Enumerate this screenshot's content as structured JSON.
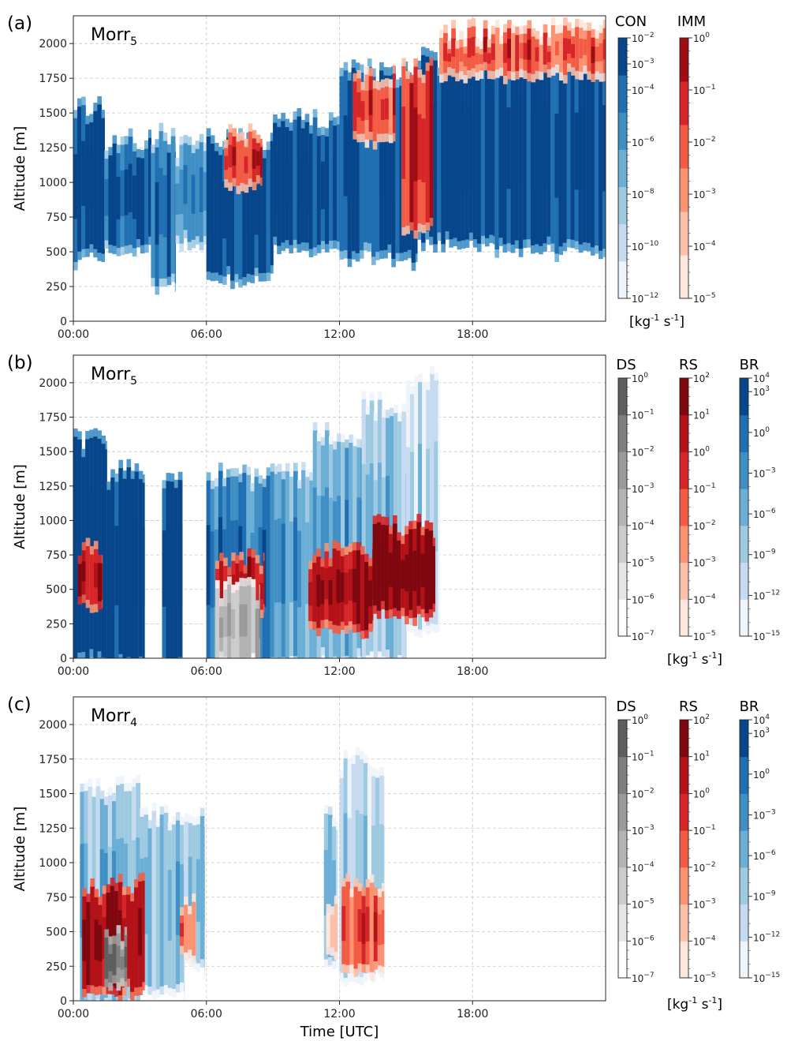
{
  "chart_data": [
    {
      "panel_letter": "(a)",
      "model": {
        "base": "Morr",
        "sub": "5"
      },
      "type": "heatmap",
      "xlabel": "",
      "ylabel": "Altitude [m]",
      "x_tick_labels": [
        "00:00",
        "06:00",
        "12:00",
        "18:00"
      ],
      "x_tick_hours": [
        0,
        6,
        12,
        18
      ],
      "xlim_hours": [
        0,
        24
      ],
      "y_ticks": [
        0,
        250,
        500,
        750,
        1000,
        1250,
        1500,
        1750,
        2000
      ],
      "ylim": [
        0,
        2200
      ],
      "grid": true,
      "unit_label": {
        "base": "[kg",
        "sup1": "-1",
        "mid": " s",
        "sup2": "-1",
        "end": "]"
      },
      "colorbars": [
        {
          "title": "CON",
          "colormap": "Blues",
          "exponents": [
            -2,
            -3,
            -4,
            -6,
            -8,
            -10,
            -12
          ],
          "log_range": [
            -12,
            -2
          ],
          "colors": [
            "#eef4fb",
            "#c6dbef",
            "#9ecae1",
            "#6baed6",
            "#3f8fc5",
            "#1f6fb2",
            "#08468b"
          ]
        },
        {
          "title": "IMM",
          "colormap": "Reds",
          "exponents": [
            0,
            -1,
            -2,
            -3,
            -4,
            -5
          ],
          "log_range": [
            -5,
            0
          ],
          "colors": [
            "#fde6dc",
            "#fcc0a8",
            "#fc9272",
            "#f25c45",
            "#d6262a",
            "#9d0d14"
          ]
        }
      ],
      "fields": [
        {
          "name": "CON",
          "colormap": "Blues",
          "segments": [
            {
              "t": [
                0.0,
                1.4
              ],
              "z": [
                500,
                1500
              ],
              "level": 6
            },
            {
              "t": [
                1.4,
                3.5
              ],
              "z": [
                550,
                1250
              ],
              "level": 5
            },
            {
              "t": [
                3.5,
                4.6
              ],
              "z": [
                300,
                1300
              ],
              "level": 5
            },
            {
              "t": [
                4.6,
                6.0
              ],
              "z": [
                600,
                1200
              ],
              "level": 4
            },
            {
              "t": [
                6.0,
                9.0
              ],
              "z": [
                350,
                1250
              ],
              "level": 6
            },
            {
              "t": [
                9.0,
                12.0
              ],
              "z": [
                550,
                1400
              ],
              "level": 6
            },
            {
              "t": [
                12.0,
                15.5
              ],
              "z": [
                500,
                1750
              ],
              "level": 6
            },
            {
              "t": [
                15.5,
                19.0
              ],
              "z": [
                600,
                1850
              ],
              "level": 6
            },
            {
              "t": [
                19.0,
                24.0
              ],
              "z": [
                550,
                1900
              ],
              "level": 6
            }
          ]
        },
        {
          "name": "IMM",
          "colormap": "Reds",
          "segments": [
            {
              "t": [
                6.8,
                8.5
              ],
              "z": [
                1000,
                1300
              ],
              "level": 4
            },
            {
              "t": [
                12.6,
                14.5
              ],
              "z": [
                1350,
                1700
              ],
              "level": 3
            },
            {
              "t": [
                14.8,
                16.2
              ],
              "z": [
                700,
                1800
              ],
              "level": 4
            },
            {
              "t": [
                16.5,
                24.0
              ],
              "z": [
                1800,
                2050
              ],
              "level": 3
            }
          ]
        }
      ]
    },
    {
      "panel_letter": "(b)",
      "model": {
        "base": "Morr",
        "sub": "5"
      },
      "type": "heatmap",
      "xlabel": "",
      "ylabel": "Altitude [m]",
      "x_tick_labels": [
        "00:00",
        "06:00",
        "12:00",
        "18:00"
      ],
      "x_tick_hours": [
        0,
        6,
        12,
        18
      ],
      "xlim_hours": [
        0,
        24
      ],
      "y_ticks": [
        0,
        250,
        500,
        750,
        1000,
        1250,
        1500,
        1750,
        2000
      ],
      "ylim": [
        0,
        2200
      ],
      "grid": true,
      "unit_label": {
        "base": "[kg",
        "sup1": "-1",
        "mid": " s",
        "sup2": "-1",
        "end": "]"
      },
      "colorbars": [
        {
          "title": "DS",
          "colormap": "Greys",
          "exponents": [
            0,
            -1,
            -2,
            -3,
            -4,
            -5,
            -6,
            -7
          ],
          "log_range": [
            -7,
            0
          ],
          "colors": [
            "#ffffff",
            "#e6e6e6",
            "#cccccc",
            "#b3b3b3",
            "#9a9a9a",
            "#7f7f7f",
            "#5e5e5e"
          ]
        },
        {
          "title": "RS",
          "colormap": "Reds",
          "exponents": [
            2,
            1,
            0,
            -1,
            -2,
            -3,
            -4,
            -5
          ],
          "log_range": [
            -5,
            2
          ],
          "colors": [
            "#fde6dc",
            "#fcc0a8",
            "#fc9272",
            "#f25c45",
            "#d6262a",
            "#b21218",
            "#7f0710"
          ]
        },
        {
          "title": "BR",
          "colormap": "Blues",
          "exponents": [
            4,
            3,
            0,
            -3,
            -6,
            -9,
            -12,
            -15
          ],
          "log_range": [
            -15,
            4
          ],
          "colors": [
            "#eef4fb",
            "#c6dbef",
            "#9ecae1",
            "#6baed6",
            "#3f8fc5",
            "#1f6fb2",
            "#08468b"
          ]
        }
      ],
      "fields": [
        {
          "name": "BR",
          "colormap": "Blues",
          "segments": [
            {
              "t": [
                0.0,
                1.5
              ],
              "z": [
                0,
                1550
              ],
              "level": 6
            },
            {
              "t": [
                1.5,
                3.2
              ],
              "z": [
                0,
                1300
              ],
              "level": 6
            },
            {
              "t": [
                4.0,
                4.9
              ],
              "z": [
                0,
                1300
              ],
              "level": 6
            },
            {
              "t": [
                6.0,
                9.2
              ],
              "z": [
                0,
                1300
              ],
              "level": 4
            },
            {
              "t": [
                9.2,
                10.8
              ],
              "z": [
                0,
                1300
              ],
              "level": 3
            },
            {
              "t": [
                10.8,
                13.0
              ],
              "z": [
                0,
                1600
              ],
              "level": 3
            },
            {
              "t": [
                13.0,
                15.0
              ],
              "z": [
                0,
                1800
              ],
              "level": 2
            },
            {
              "t": [
                15.0,
                16.5
              ],
              "z": [
                250,
                2000
              ],
              "level": 1
            }
          ]
        },
        {
          "name": "RS",
          "colormap": "Reds",
          "segments": [
            {
              "t": [
                0.2,
                1.3
              ],
              "z": [
                400,
                750
              ],
              "level": 5
            },
            {
              "t": [
                6.4,
                8.6
              ],
              "z": [
                350,
                650
              ],
              "level": 5
            },
            {
              "t": [
                10.6,
                13.5
              ],
              "z": [
                250,
                720
              ],
              "level": 5
            },
            {
              "t": [
                13.5,
                16.3
              ],
              "z": [
                350,
                900
              ],
              "level": 6
            }
          ]
        },
        {
          "name": "DS",
          "colormap": "Greys",
          "segments": [
            {
              "t": [
                6.4,
                8.4
              ],
              "z": [
                0,
                450
              ],
              "level": 3
            }
          ]
        }
      ]
    },
    {
      "panel_letter": "(c)",
      "model": {
        "base": "Morr",
        "sub": "4"
      },
      "type": "heatmap",
      "xlabel": "Time [UTC]",
      "ylabel": "Altitude [m]",
      "x_tick_labels": [
        "00:00",
        "06:00",
        "12:00",
        "18:00"
      ],
      "x_tick_hours": [
        0,
        6,
        12,
        18
      ],
      "xlim_hours": [
        0,
        24
      ],
      "y_ticks": [
        0,
        250,
        500,
        750,
        1000,
        1250,
        1500,
        1750,
        2000
      ],
      "ylim": [
        0,
        2200
      ],
      "grid": true,
      "unit_label": {
        "base": "[kg",
        "sup1": "-1",
        "mid": " s",
        "sup2": "-1",
        "end": "]"
      },
      "colorbars": [
        {
          "title": "DS",
          "colormap": "Greys",
          "exponents": [
            0,
            -1,
            -2,
            -3,
            -4,
            -5,
            -6,
            -7
          ],
          "log_range": [
            -7,
            0
          ],
          "colors": [
            "#ffffff",
            "#e6e6e6",
            "#cccccc",
            "#b3b3b3",
            "#9a9a9a",
            "#7f7f7f",
            "#5e5e5e"
          ]
        },
        {
          "title": "RS",
          "colormap": "Reds",
          "exponents": [
            2,
            1,
            0,
            -1,
            -2,
            -3,
            -4,
            -5
          ],
          "log_range": [
            -5,
            2
          ],
          "colors": [
            "#fde6dc",
            "#fcc0a8",
            "#fc9272",
            "#f25c45",
            "#d6262a",
            "#b21218",
            "#7f0710"
          ]
        },
        {
          "title": "BR",
          "colormap": "Blues",
          "exponents": [
            4,
            3,
            0,
            -3,
            -6,
            -9,
            -12,
            -15
          ],
          "log_range": [
            -15,
            4
          ],
          "colors": [
            "#eef4fb",
            "#c6dbef",
            "#9ecae1",
            "#6baed6",
            "#3f8fc5",
            "#1f6fb2",
            "#08468b"
          ]
        }
      ],
      "fields": [
        {
          "name": "BR",
          "colormap": "Blues",
          "segments": [
            {
              "t": [
                0.3,
                3.0
              ],
              "z": [
                0,
                1500
              ],
              "level": 2
            },
            {
              "t": [
                3.0,
                5.0
              ],
              "z": [
                100,
                1300
              ],
              "level": 2
            },
            {
              "t": [
                5.0,
                5.9
              ],
              "z": [
                300,
                1300
              ],
              "level": 2
            },
            {
              "t": [
                11.3,
                11.9
              ],
              "z": [
                300,
                1300
              ],
              "level": 2
            },
            {
              "t": [
                12.0,
                14.0
              ],
              "z": [
                200,
                1700
              ],
              "level": 1
            }
          ]
        },
        {
          "name": "RS",
          "colormap": "Reds",
          "segments": [
            {
              "t": [
                0.4,
                3.2
              ],
              "z": [
                100,
                780
              ],
              "level": 5
            },
            {
              "t": [
                4.8,
                5.5
              ],
              "z": [
                350,
                680
              ],
              "level": 3
            },
            {
              "t": [
                11.4,
                11.9
              ],
              "z": [
                350,
                680
              ],
              "level": 1
            },
            {
              "t": [
                12.1,
                14.0
              ],
              "z": [
                250,
                820
              ],
              "level": 3
            }
          ]
        },
        {
          "name": "DS",
          "colormap": "Greys",
          "segments": [
            {
              "t": [
                1.4,
                2.4
              ],
              "z": [
                150,
                450
              ],
              "level": 5
            }
          ]
        }
      ]
    }
  ]
}
